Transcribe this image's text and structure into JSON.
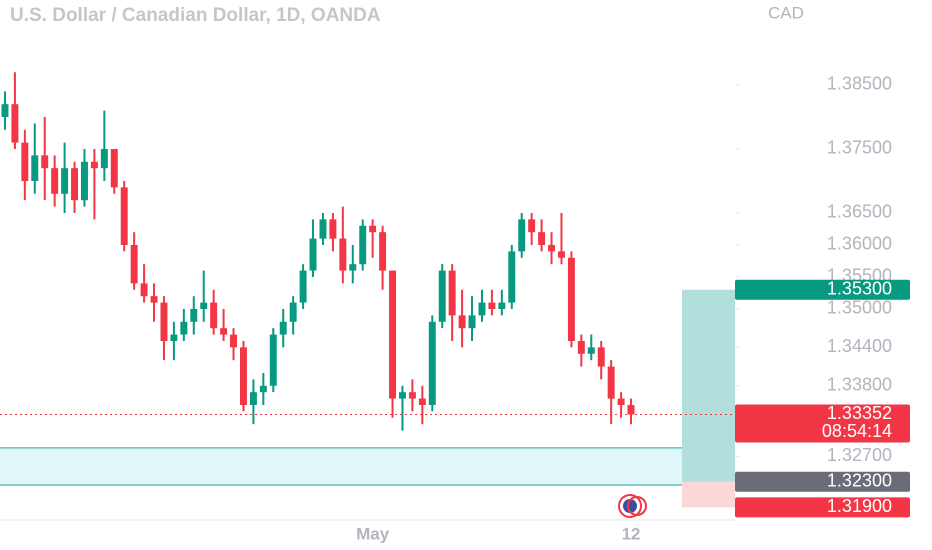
{
  "chart_data": {
    "type": "candlestick",
    "title": "U.S. Dollar / Canadian Dollar, 1D, OANDA",
    "currency": "CAD",
    "up_color": "#089981",
    "down_color": "#f23645",
    "categories": [
      null,
      null,
      null,
      null,
      null,
      null,
      null,
      null,
      null,
      null,
      null,
      null,
      null,
      null,
      null,
      null,
      null,
      null,
      null,
      null,
      null,
      null,
      null,
      null,
      null,
      null,
      null,
      null,
      null,
      null,
      null,
      null,
      null,
      null,
      null,
      null,
      null,
      "May",
      null,
      null,
      null,
      null,
      null,
      null,
      null,
      null,
      null,
      null,
      null,
      null,
      null,
      null,
      null,
      null,
      null,
      null,
      null,
      null,
      null,
      null,
      null,
      null,
      null,
      "12"
    ],
    "open": [
      1.38,
      1.382,
      1.376,
      1.37,
      1.374,
      1.372,
      1.368,
      1.372,
      1.367,
      1.373,
      1.372,
      1.375,
      1.369,
      1.36,
      1.354,
      1.352,
      1.351,
      1.345,
      1.346,
      1.348,
      1.35,
      1.351,
      1.347,
      1.346,
      1.344,
      1.335,
      1.337,
      1.338,
      1.346,
      1.348,
      1.351,
      1.356,
      1.361,
      1.364,
      1.361,
      1.356,
      1.357,
      1.363,
      1.362,
      1.356,
      1.336,
      1.337,
      1.336,
      1.335,
      1.348,
      1.356,
      1.349,
      1.347,
      1.349,
      1.351,
      1.35,
      1.351,
      1.359,
      1.364,
      1.362,
      1.36,
      1.359,
      1.358,
      1.345,
      1.343,
      1.344,
      1.341,
      1.336,
      1.335
    ],
    "high": [
      1.384,
      1.387,
      1.378,
      1.379,
      1.38,
      1.374,
      1.376,
      1.373,
      1.375,
      1.375,
      1.381,
      1.375,
      1.37,
      1.362,
      1.357,
      1.354,
      1.352,
      1.348,
      1.35,
      1.352,
      1.356,
      1.353,
      1.35,
      1.347,
      1.345,
      1.339,
      1.34,
      1.347,
      1.35,
      1.352,
      1.357,
      1.364,
      1.365,
      1.365,
      1.366,
      1.36,
      1.364,
      1.364,
      1.363,
      1.356,
      1.338,
      1.339,
      1.338,
      1.349,
      1.357,
      1.357,
      1.353,
      1.352,
      1.353,
      1.353,
      1.353,
      1.36,
      1.365,
      1.365,
      1.364,
      1.362,
      1.365,
      1.359,
      1.346,
      1.346,
      1.345,
      1.342,
      1.337,
      1.336
    ],
    "low": [
      1.378,
      1.375,
      1.367,
      1.368,
      1.367,
      1.366,
      1.365,
      1.365,
      1.366,
      1.364,
      1.37,
      1.368,
      1.359,
      1.353,
      1.351,
      1.348,
      1.342,
      1.342,
      1.345,
      1.346,
      1.348,
      1.346,
      1.345,
      1.342,
      1.334,
      1.332,
      1.335,
      1.337,
      1.344,
      1.346,
      1.35,
      1.355,
      1.36,
      1.359,
      1.354,
      1.354,
      1.356,
      1.358,
      1.353,
      1.333,
      1.331,
      1.334,
      1.332,
      1.334,
      1.347,
      1.345,
      1.344,
      1.345,
      1.348,
      1.349,
      1.349,
      1.35,
      1.358,
      1.36,
      1.359,
      1.357,
      1.357,
      1.344,
      1.341,
      1.342,
      1.339,
      1.332,
      1.333,
      1.332
    ],
    "close": [
      1.382,
      1.376,
      1.37,
      1.374,
      1.372,
      1.368,
      1.372,
      1.367,
      1.373,
      1.372,
      1.375,
      1.369,
      1.36,
      1.354,
      1.352,
      1.351,
      1.345,
      1.346,
      1.348,
      1.35,
      1.351,
      1.347,
      1.346,
      1.344,
      1.335,
      1.337,
      1.338,
      1.346,
      1.348,
      1.351,
      1.356,
      1.361,
      1.364,
      1.361,
      1.356,
      1.357,
      1.363,
      1.362,
      1.356,
      1.336,
      1.337,
      1.336,
      1.335,
      1.348,
      1.356,
      1.349,
      1.347,
      1.349,
      1.351,
      1.35,
      1.351,
      1.359,
      1.364,
      1.362,
      1.36,
      1.359,
      1.358,
      1.345,
      1.343,
      1.344,
      1.341,
      1.336,
      1.335,
      1.33352
    ],
    "ylim": [
      1.31234,
      1.39828
    ],
    "yticks": [
      {
        "value": 1.385,
        "label": "1.38500"
      },
      {
        "value": 1.375,
        "label": "1.37500"
      },
      {
        "value": 1.365,
        "label": "1.36500"
      },
      {
        "value": 1.36,
        "label": "1.36000"
      },
      {
        "value": 1.355,
        "label": "1.35500"
      },
      {
        "value": 1.35,
        "label": "1.35000"
      },
      {
        "value": 1.344,
        "label": "1.34400"
      },
      {
        "value": 1.338,
        "label": "1.33800"
      },
      {
        "value": 1.327,
        "label": "1.32700"
      }
    ],
    "price_labels": [
      {
        "value": 1.353,
        "label": "1.35300",
        "color": "#089981"
      },
      {
        "value": 1.33352,
        "label": "1.33352",
        "color": "#f23645",
        "countdown": "08:54:14"
      },
      {
        "value": 1.323,
        "label": "1.32300",
        "color": "#6a6d78"
      },
      {
        "value": 1.319,
        "label": "1.31900",
        "color": "#f23645"
      }
    ],
    "zones": [
      {
        "top": 1.3283,
        "bottom": 1.3225,
        "color": "#e0f7fa",
        "border": "#26a69a"
      },
      {
        "top": 1.353,
        "bottom": 1.323,
        "color": "#b2dfdb"
      },
      {
        "top": 1.323,
        "bottom": 1.319,
        "color": "#fbd7d9"
      }
    ]
  }
}
